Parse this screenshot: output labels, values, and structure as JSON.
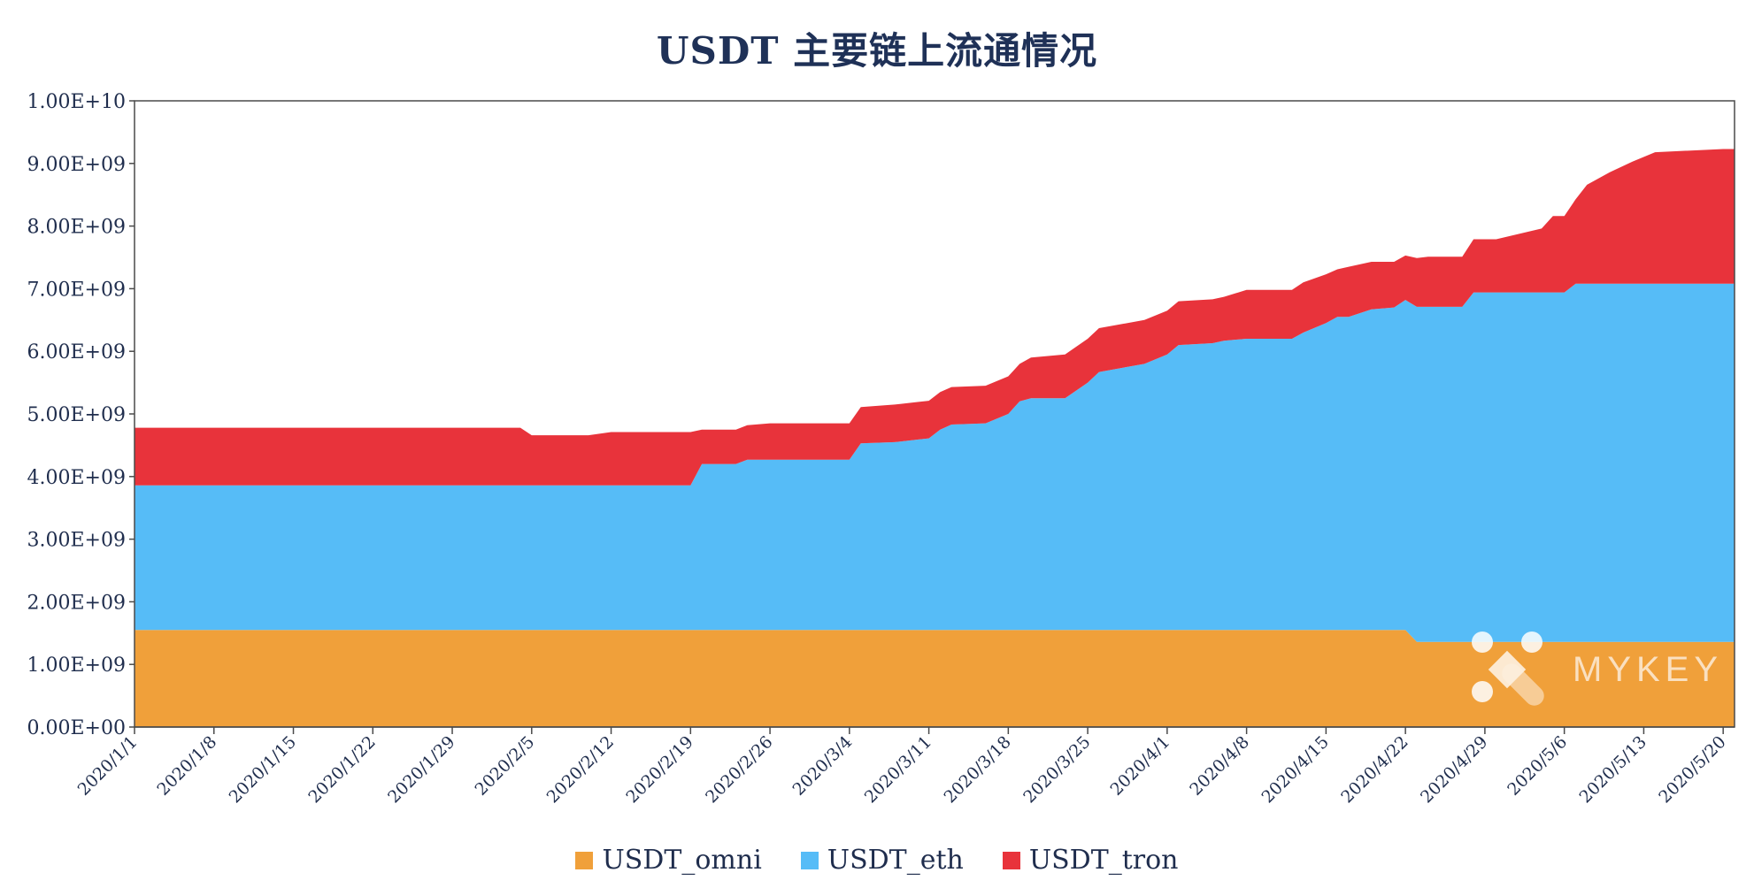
{
  "chart_data": {
    "type": "area",
    "stacked": true,
    "title": "USDT 主要链上流通情况",
    "xlabel": "",
    "ylabel": "",
    "ylim": [
      0,
      10000000000
    ],
    "grid": false,
    "legend_position": "bottom",
    "y_ticks": [
      "0.00E+00",
      "1.00E+09",
      "2.00E+09",
      "3.00E+09",
      "4.00E+09",
      "5.00E+09",
      "6.00E+09",
      "7.00E+09",
      "8.00E+09",
      "9.00E+09",
      "1.00E+10"
    ],
    "x_ticks": [
      "2020/1/1",
      "2020/1/8",
      "2020/1/15",
      "2020/1/22",
      "2020/1/29",
      "2020/2/5",
      "2020/2/12",
      "2020/2/19",
      "2020/2/26",
      "2020/3/4",
      "2020/3/11",
      "2020/3/18",
      "2020/3/25",
      "2020/4/1",
      "2020/4/8",
      "2020/4/15",
      "2020/4/22",
      "2020/4/29",
      "2020/5/6",
      "2020/5/13",
      "2020/5/20"
    ],
    "x": [
      "2020/1/1",
      "2020/1/8",
      "2020/1/15",
      "2020/1/22",
      "2020/1/29",
      "2020/2/4",
      "2020/2/5",
      "2020/2/10",
      "2020/2/12",
      "2020/2/19",
      "2020/2/20",
      "2020/2/23",
      "2020/2/24",
      "2020/2/26",
      "2020/3/4",
      "2020/3/5",
      "2020/3/8",
      "2020/3/10",
      "2020/3/11",
      "2020/3/12",
      "2020/3/13",
      "2020/3/16",
      "2020/3/18",
      "2020/3/19",
      "2020/3/20",
      "2020/3/23",
      "2020/3/25",
      "2020/3/26",
      "2020/3/30",
      "2020/4/1",
      "2020/4/2",
      "2020/4/5",
      "2020/4/6",
      "2020/4/8",
      "2020/4/12",
      "2020/4/13",
      "2020/4/15",
      "2020/4/16",
      "2020/4/17",
      "2020/4/19",
      "2020/4/21",
      "2020/4/22",
      "2020/4/23",
      "2020/4/24",
      "2020/4/27",
      "2020/4/28",
      "2020/4/30",
      "2020/5/4",
      "2020/5/5",
      "2020/5/6",
      "2020/5/7",
      "2020/5/8",
      "2020/5/10",
      "2020/5/12",
      "2020/5/14",
      "2020/5/20",
      "2020/5/21"
    ],
    "series": [
      {
        "name": "USDT_omni",
        "color": "#f0a03a",
        "values": [
          1550000000.0,
          1550000000.0,
          1550000000.0,
          1550000000.0,
          1550000000.0,
          1550000000.0,
          1550000000.0,
          1550000000.0,
          1550000000.0,
          1550000000.0,
          1550000000.0,
          1550000000.0,
          1550000000.0,
          1550000000.0,
          1550000000.0,
          1550000000.0,
          1550000000.0,
          1550000000.0,
          1550000000.0,
          1550000000.0,
          1550000000.0,
          1550000000.0,
          1550000000.0,
          1550000000.0,
          1550000000.0,
          1550000000.0,
          1550000000.0,
          1550000000.0,
          1550000000.0,
          1550000000.0,
          1550000000.0,
          1550000000.0,
          1550000000.0,
          1550000000.0,
          1550000000.0,
          1550000000.0,
          1550000000.0,
          1550000000.0,
          1550000000.0,
          1550000000.0,
          1550000000.0,
          1550000000.0,
          1360000000.0,
          1360000000.0,
          1360000000.0,
          1360000000.0,
          1360000000.0,
          1360000000.0,
          1360000000.0,
          1360000000.0,
          1360000000.0,
          1360000000.0,
          1360000000.0,
          1360000000.0,
          1360000000.0,
          1360000000.0,
          1360000000.0
        ]
      },
      {
        "name": "USDT_eth",
        "color": "#56bcf7",
        "values": [
          2310000000.0,
          2310000000.0,
          2310000000.0,
          2310000000.0,
          2310000000.0,
          2310000000.0,
          2310000000.0,
          2310000000.0,
          2310000000.0,
          2310000000.0,
          2650000000.0,
          2650000000.0,
          2720000000.0,
          2720000000.0,
          2720000000.0,
          2980000000.0,
          3000000000.0,
          3040000000.0,
          3060000000.0,
          3200000000.0,
          3280000000.0,
          3300000000.0,
          3450000000.0,
          3650000000.0,
          3700000000.0,
          3700000000.0,
          3950000000.0,
          4120000000.0,
          4250000000.0,
          4400000000.0,
          4550000000.0,
          4580000000.0,
          4620000000.0,
          4650000000.0,
          4650000000.0,
          4750000000.0,
          4900000000.0,
          5000000000.0,
          5000000000.0,
          5120000000.0,
          5150000000.0,
          5270000000.0,
          5350000000.0,
          5350000000.0,
          5350000000.0,
          5580000000.0,
          5580000000.0,
          5580000000.0,
          5580000000.0,
          5580000000.0,
          5720000000.0,
          5720000000.0,
          5720000000.0,
          5720000000.0,
          5720000000.0,
          5720000000.0,
          5720000000.0
        ]
      },
      {
        "name": "USDT_tron",
        "color": "#e8333b",
        "values": [
          920000000.0,
          920000000.0,
          920000000.0,
          920000000.0,
          920000000.0,
          920000000.0,
          800000000.0,
          800000000.0,
          850000000.0,
          850000000.0,
          550000000.0,
          550000000.0,
          550000000.0,
          580000000.0,
          580000000.0,
          580000000.0,
          600000000.0,
          600000000.0,
          600000000.0,
          600000000.0,
          600000000.0,
          600000000.0,
          600000000.0,
          600000000.0,
          650000000.0,
          700000000.0,
          700000000.0,
          700000000.0,
          700000000.0,
          700000000.0,
          700000000.0,
          700000000.0,
          700000000.0,
          780000000.0,
          780000000.0,
          800000000.0,
          780000000.0,
          760000000.0,
          800000000.0,
          760000000.0,
          730000000.0,
          710000000.0,
          780000000.0,
          800000000.0,
          800000000.0,
          850000000.0,
          850000000.0,
          1020000000.0,
          1220000000.0,
          1220000000.0,
          1350000000.0,
          1580000000.0,
          1780000000.0,
          1950000000.0,
          2100000000.0,
          2150000000.0,
          2150000000.0
        ]
      }
    ]
  },
  "legend": {
    "items": [
      {
        "label": "USDT_omni",
        "color": "#f0a03a"
      },
      {
        "label": "USDT_eth",
        "color": "#56bcf7"
      },
      {
        "label": "USDT_tron",
        "color": "#e8333b"
      }
    ]
  },
  "watermark": {
    "text": "MYKEY",
    "icon": "mykey-logo-icon"
  }
}
